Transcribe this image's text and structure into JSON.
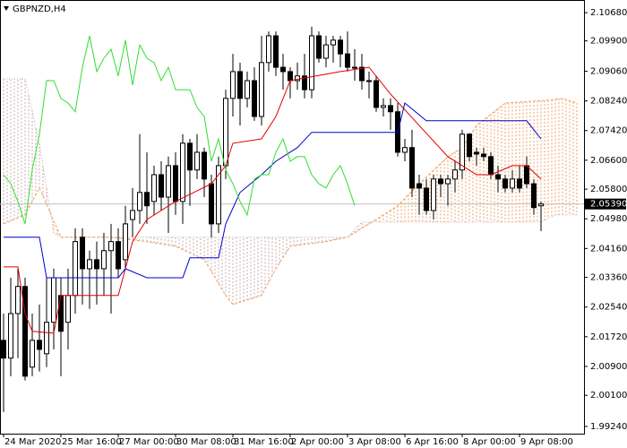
{
  "chart_data": {
    "type": "candlestick",
    "title": "GBPNZD,H4",
    "up_color": "#ffffff",
    "down_color": "#000000",
    "outline_color": "#000000",
    "open": [
      2.0162,
      2.0113,
      2.0236,
      2.0311,
      2.0088,
      2.0162,
      2.0125,
      2.0212,
      2.0286,
      2.0212,
      2.0286,
      2.0447,
      2.036,
      2.0385,
      2.036,
      2.041,
      2.0435,
      2.0385,
      2.0496,
      2.0521,
      2.0571,
      2.0546,
      2.062,
      2.0558,
      2.0645,
      2.0546,
      2.0707,
      2.0633,
      2.0682,
      2.0595,
      2.0484,
      2.0645,
      2.0831,
      2.0905,
      2.0831,
      2.088,
      2.0781,
      2.093,
      2.1004,
      2.0917,
      2.0905,
      2.088,
      2.0893,
      2.0855,
      2.1004,
      2.0942,
      2.0979,
      2.0992,
      2.0954,
      2.0917,
      2.0917,
      2.088,
      2.088,
      2.0806,
      2.0811,
      2.0794,
      2.0682,
      2.0695,
      2.0595,
      2.0583,
      2.0521,
      2.0608,
      2.0595,
      2.0608,
      2.0633,
      2.0732,
      2.0682,
      2.0677,
      2.067,
      2.062,
      2.0608,
      2.0583,
      2.0608,
      2.0645,
      2.0595,
      2.0534
    ],
    "high": [
      2.0236,
      2.0335,
      2.036,
      2.0335,
      2.0236,
      2.0261,
      2.0335,
      2.036,
      2.0335,
      2.036,
      2.0472,
      2.0472,
      2.041,
      2.0435,
      2.0459,
      2.0484,
      2.0472,
      2.0534,
      2.0583,
      2.0732,
      2.0682,
      2.0645,
      2.0657,
      2.067,
      2.0682,
      2.0732,
      2.0719,
      2.0732,
      2.0695,
      2.062,
      2.067,
      2.0855,
      2.0954,
      2.093,
      2.0905,
      2.0917,
      2.1004,
      2.1016,
      2.1016,
      2.0954,
      2.0917,
      2.093,
      2.0954,
      2.1029,
      2.1016,
      2.1004,
      2.1004,
      2.1004,
      2.1016,
      2.0967,
      2.0954,
      2.0905,
      2.0893,
      2.0831,
      2.0831,
      2.0818,
      2.0719,
      2.0744,
      2.062,
      2.0608,
      2.062,
      2.062,
      2.062,
      2.0657,
      2.0744,
      2.0735,
      2.0695,
      2.0695,
      2.0682,
      2.0645,
      2.062,
      2.0633,
      2.0645,
      2.067,
      2.0608,
      2.0546
    ],
    "low": [
      1.9964,
      2.0063,
      2.0113,
      2.0051,
      2.0063,
      2.0076,
      2.0088,
      2.0137,
      2.0063,
      2.0137,
      2.0236,
      2.0261,
      2.0249,
      2.0261,
      2.0286,
      2.0236,
      2.0335,
      2.036,
      2.0447,
      2.0484,
      2.0484,
      2.0509,
      2.0521,
      2.0459,
      2.0509,
      2.0484,
      2.0534,
      2.0608,
      2.0558,
      2.0447,
      2.0459,
      2.0608,
      2.0781,
      2.0756,
      2.0806,
      2.0769,
      2.0756,
      2.0905,
      2.0893,
      2.0855,
      2.0831,
      2.0855,
      2.0831,
      2.0831,
      2.093,
      2.0917,
      2.093,
      2.0917,
      2.0905,
      2.088,
      2.0855,
      2.0831,
      2.0794,
      2.0781,
      2.0744,
      2.067,
      2.0657,
      2.0558,
      2.0509,
      2.0509,
      2.0496,
      2.0558,
      2.0534,
      2.0571,
      2.0608,
      2.0657,
      2.0645,
      2.0657,
      2.0608,
      2.0571,
      2.0571,
      2.0571,
      2.0571,
      2.0583,
      2.0509,
      2.0464
    ],
    "close": [
      2.0113,
      2.0236,
      2.0311,
      2.0063,
      2.0162,
      2.0137,
      2.0212,
      2.0335,
      2.0187,
      2.0286,
      2.0435,
      2.036,
      2.0385,
      2.036,
      2.041,
      2.0435,
      2.036,
      2.0484,
      2.0521,
      2.0571,
      2.0534,
      2.062,
      2.0558,
      2.0645,
      2.0546,
      2.0707,
      2.0633,
      2.0682,
      2.0608,
      2.0484,
      2.0645,
      2.0831,
      2.0905,
      2.0831,
      2.088,
      2.0781,
      2.093,
      2.1004,
      2.0917,
      2.0905,
      2.088,
      2.0893,
      2.0855,
      2.1004,
      2.0942,
      2.0979,
      2.0992,
      2.0954,
      2.0917,
      2.0915,
      2.088,
      2.0878,
      2.0806,
      2.0811,
      2.0794,
      2.0682,
      2.0695,
      2.0583,
      2.0583,
      2.0521,
      2.0608,
      2.0595,
      2.0608,
      2.0633,
      2.0732,
      2.067,
      2.0677,
      2.067,
      2.062,
      2.0608,
      2.0583,
      2.0608,
      2.0583,
      2.0595,
      2.0529,
      2.0539
    ],
    "lines": [
      {
        "color": "#e00000",
        "x": [
          0,
          2,
          3,
          4,
          7,
          8,
          16,
          17,
          18,
          20,
          24,
          29,
          31,
          32,
          36,
          38,
          40,
          47,
          51,
          53,
          54,
          58,
          62,
          66,
          68,
          71,
          73,
          75
        ],
        "values": [
          2.0365,
          2.0365,
          2.0236,
          2.0187,
          2.0182,
          2.0286,
          2.0286,
          2.036,
          2.0435,
          2.0496,
          2.0546,
          2.0595,
          2.0645,
          2.0707,
          2.0719,
          2.0781,
          2.088,
          2.0905,
          2.0917,
          2.0868,
          2.0843,
          2.0756,
          2.067,
          2.062,
          2.062,
          2.0645,
          2.0645,
          2.0608
        ]
      },
      {
        "color": "#0000cc",
        "x": [
          0,
          5,
          6,
          16,
          17,
          20,
          25,
          26,
          30,
          31,
          33,
          36,
          38,
          41,
          43,
          55,
          56,
          59,
          73,
          75
        ],
        "values": [
          2.0447,
          2.0447,
          2.0335,
          2.0335,
          2.036,
          2.0335,
          2.0335,
          2.039,
          2.039,
          2.0484,
          2.0571,
          2.062,
          2.0657,
          2.0695,
          2.0737,
          2.0737,
          2.0818,
          2.0769,
          2.0769,
          2.0719
        ]
      },
      {
        "color": "#33dd33",
        "x": [
          0,
          1,
          2,
          3,
          4,
          5,
          6,
          7,
          8,
          9,
          10,
          11,
          12,
          13,
          14,
          15,
          16,
          17,
          18,
          19,
          20,
          21,
          22,
          23,
          24,
          25,
          26,
          27,
          28,
          29,
          30,
          31,
          32,
          33,
          34,
          35,
          36,
          37,
          38,
          39,
          40,
          41,
          42,
          43,
          44,
          45,
          46,
          47,
          48,
          49
        ],
        "values": [
          2.062,
          2.0595,
          2.0546,
          2.0484,
          2.0633,
          2.0732,
          2.088,
          2.088,
          2.0831,
          2.0818,
          2.0794,
          2.0917,
          2.1004,
          2.0905,
          2.0942,
          2.0967,
          2.0893,
          2.0992,
          2.0868,
          2.0979,
          2.0942,
          2.093,
          2.088,
          2.0917,
          2.0855,
          2.0855,
          2.0855,
          2.0806,
          2.0781,
          2.0657,
          2.0719,
          2.0633,
          2.0595,
          2.0546,
          2.0509,
          2.0608,
          2.062,
          2.062,
          2.0682,
          2.0719,
          2.0657,
          2.067,
          2.067,
          2.062,
          2.0595,
          2.0583,
          2.062,
          2.0645,
          2.0595,
          2.0534
        ]
      }
    ],
    "cloud": {
      "span_a": {
        "color": "#f0a060",
        "x": [
          0,
          3,
          5,
          8,
          15,
          20,
          24,
          28,
          31,
          32,
          36,
          38,
          40,
          45,
          48,
          51,
          55,
          58,
          62,
          64,
          66,
          70,
          76,
          78,
          80
        ],
        "values": [
          2.0484,
          2.0509,
          2.0583,
          2.0447,
          2.0447,
          2.0435,
          2.0422,
          2.0385,
          2.0286,
          2.0261,
          2.0286,
          2.036,
          2.0422,
          2.0435,
          2.0447,
          2.0484,
          2.0534,
          2.0595,
          2.067,
          2.0695,
          2.0756,
          2.0818,
          2.0826,
          2.0831,
          2.0818
        ]
      },
      "span_b": {
        "color": "#c8a8a8",
        "x": [
          0,
          3,
          5,
          7,
          8,
          48,
          50,
          75,
          77,
          80
        ],
        "values": [
          2.0885,
          2.0885,
          2.0707,
          2.0459,
          2.0447,
          2.0447,
          2.0489,
          2.0489,
          2.0509,
          2.0509
        ]
      }
    },
    "current_price": {
      "value": 2.0539,
      "label": "2.05390"
    },
    "xlim": [
      -0.5,
      81
    ],
    "xticks": [
      {
        "value": 0,
        "label": "24 Mar 2020"
      },
      {
        "value": 8,
        "label": "25 Mar 16:00"
      },
      {
        "value": 16,
        "label": "27 Mar 00:00"
      },
      {
        "value": 24,
        "label": "30 Mar 08:00"
      },
      {
        "value": 32,
        "label": "31 Mar 16:00"
      },
      {
        "value": 40,
        "label": "2 Apr 00:00"
      },
      {
        "value": 48,
        "label": "3 Apr 08:00"
      },
      {
        "value": 56,
        "label": "6 Apr 16:00"
      },
      {
        "value": 64,
        "label": "8 Apr 00:00"
      },
      {
        "value": 72,
        "label": "9 Apr 08:00"
      }
    ],
    "ylim": [
      1.9904,
      2.1103
    ],
    "yticks": [
      {
        "value": 2.1068,
        "label": "2.10680"
      },
      {
        "value": 2.099,
        "label": "2.09900"
      },
      {
        "value": 2.0906,
        "label": "2.09060"
      },
      {
        "value": 2.0824,
        "label": "2.08240"
      },
      {
        "value": 2.0742,
        "label": "2.07420"
      },
      {
        "value": 2.066,
        "label": "2.06600"
      },
      {
        "value": 2.058,
        "label": "2.05800"
      },
      {
        "value": 2.0498,
        "label": "2.04980"
      },
      {
        "value": 2.0416,
        "label": "2.04160"
      },
      {
        "value": 2.0336,
        "label": "2.03360"
      },
      {
        "value": 2.0254,
        "label": "2.02540"
      },
      {
        "value": 2.0172,
        "label": "2.01720"
      },
      {
        "value": 2.009,
        "label": "2.00900"
      },
      {
        "value": 2.001,
        "label": "2.00100"
      },
      {
        "value": 1.9924,
        "label": "1.99240"
      }
    ]
  }
}
